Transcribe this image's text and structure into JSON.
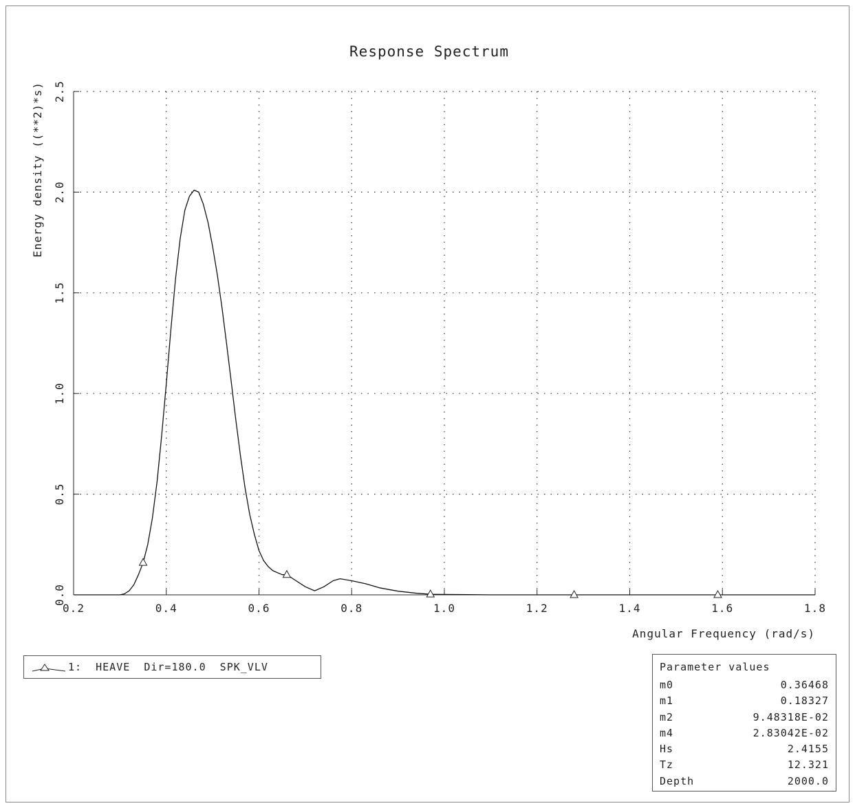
{
  "chart_data": {
    "type": "line",
    "title": "Response Spectrum",
    "xlabel": "Angular Frequency (rad/s)",
    "ylabel": "Energy density ((**2)*s)",
    "xlim": [
      0.2,
      1.8
    ],
    "ylim": [
      0.0,
      2.5
    ],
    "xticks": [
      "0.2",
      "0.4",
      "0.6",
      "0.8",
      "1.0",
      "1.2",
      "1.4",
      "1.6",
      "1.8"
    ],
    "yticks": [
      "0.0",
      "0.5",
      "1.0",
      "1.5",
      "2.0",
      "2.5"
    ],
    "grid": true,
    "series": [
      {
        "name": "1:  HEAVE  Dir=180.0  SPK_VLV",
        "x": [
          0.2,
          0.28,
          0.3,
          0.31,
          0.32,
          0.33,
          0.34,
          0.35,
          0.36,
          0.37,
          0.38,
          0.39,
          0.4,
          0.41,
          0.42,
          0.43,
          0.44,
          0.45,
          0.46,
          0.47,
          0.48,
          0.49,
          0.5,
          0.51,
          0.52,
          0.53,
          0.54,
          0.55,
          0.56,
          0.57,
          0.58,
          0.59,
          0.6,
          0.61,
          0.62,
          0.63,
          0.64,
          0.65,
          0.66,
          0.68,
          0.7,
          0.72,
          0.74,
          0.76,
          0.775,
          0.8,
          0.83,
          0.86,
          0.9,
          0.94,
          0.97,
          1.0,
          1.05,
          1.1,
          1.2,
          1.3,
          1.4,
          1.5,
          1.6,
          1.7,
          1.8
        ],
        "y": [
          0.0,
          0.0,
          0.0,
          0.005,
          0.02,
          0.05,
          0.1,
          0.16,
          0.25,
          0.38,
          0.56,
          0.79,
          1.05,
          1.32,
          1.57,
          1.77,
          1.91,
          1.98,
          2.01,
          2.0,
          1.94,
          1.85,
          1.73,
          1.59,
          1.43,
          1.25,
          1.06,
          0.87,
          0.69,
          0.53,
          0.4,
          0.3,
          0.22,
          0.17,
          0.14,
          0.12,
          0.11,
          0.1,
          0.1,
          0.07,
          0.04,
          0.02,
          0.04,
          0.07,
          0.08,
          0.07,
          0.055,
          0.035,
          0.018,
          0.008,
          0.003,
          0.002,
          0.001,
          0.0,
          0.0,
          0.0,
          0.0,
          0.0,
          0.0,
          0.0,
          0.0
        ],
        "markers": [
          {
            "x": 0.35,
            "y": 0.16
          },
          {
            "x": 0.66,
            "y": 0.1
          },
          {
            "x": 0.97,
            "y": 0.003
          },
          {
            "x": 1.28,
            "y": 0.0
          },
          {
            "x": 1.59,
            "y": 0.0
          }
        ]
      }
    ],
    "legend": "bottom-left"
  },
  "legend": {
    "entry": "1:  HEAVE  Dir=180.0  SPK_VLV"
  },
  "parameters": {
    "title": "Parameter values",
    "rows": [
      {
        "label": "m0",
        "value": "0.36468"
      },
      {
        "label": "m1",
        "value": "0.18327"
      },
      {
        "label": "m2",
        "value": "9.48318E-02"
      },
      {
        "label": "m4",
        "value": "2.83042E-02"
      },
      {
        "label": "Hs",
        "value": "2.4155"
      },
      {
        "label": "Tz",
        "value": "12.321"
      },
      {
        "label": "Depth",
        "value": "2000.0"
      }
    ]
  }
}
